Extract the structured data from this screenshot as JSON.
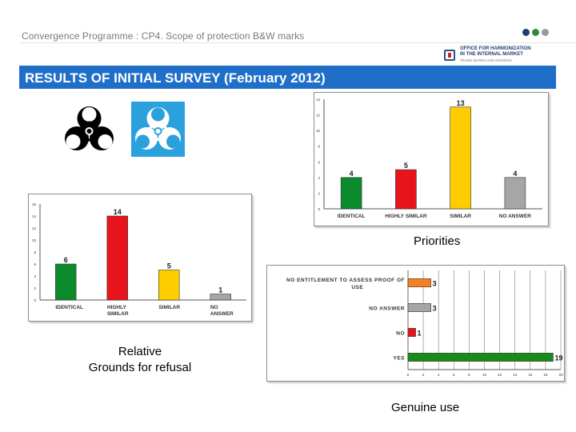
{
  "header": {
    "text": "Convergence Programme : CP4. Scope of protection B&W marks"
  },
  "logo": {
    "line1": "OFFICE FOR HARMONIZATION",
    "line2": "IN THE INTERNAL MARKET",
    "line3": "TRADE MARKS AND DESIGNS",
    "dot_colors": [
      "#1f3d73",
      "#2d8c3c",
      "#9a9a9a"
    ]
  },
  "banner": {
    "title": "RESULTS OF INITIAL SURVEY (February 2012)",
    "color": "#1f6fc9"
  },
  "icons": [
    {
      "name": "biohazard-black-icon",
      "bg": "#ffffff",
      "fg": "#000000"
    },
    {
      "name": "biohazard-blue-icon",
      "bg": "#2aa1dd",
      "fg": "#ffffff"
    }
  ],
  "captions": {
    "priorities": "Priorities",
    "relative_line1": "Relative",
    "relative_line2": "Grounds for refusal",
    "genuine": "Genuine use"
  },
  "chart_data": [
    {
      "id": "priorities",
      "type": "bar",
      "categories": [
        "IDENTICAL",
        "HIGHLY SIMILAR",
        "SIMILAR",
        "NO ANSWER"
      ],
      "values": [
        4,
        5,
        13,
        4
      ],
      "colors": [
        "#0a8a2a",
        "#e8141c",
        "#ffcc00",
        "#a6a6a6"
      ],
      "ylim": [
        0,
        14
      ],
      "yticks": [
        0,
        2,
        4,
        6,
        8,
        10,
        12,
        14
      ],
      "title": "",
      "xlabel": "",
      "ylabel": ""
    },
    {
      "id": "relative",
      "type": "bar",
      "categories": [
        "IDENTICAL",
        "HIGHLY SIMILAR",
        "SIMILAR",
        "NO ANSWER"
      ],
      "values": [
        6,
        14,
        5,
        1
      ],
      "colors": [
        "#0a8a2a",
        "#e8141c",
        "#ffcc00",
        "#a6a6a6"
      ],
      "ylim": [
        0,
        16
      ],
      "yticks": [
        0,
        2,
        4,
        6,
        8,
        10,
        12,
        14,
        16
      ],
      "title": "",
      "xlabel": "",
      "ylabel": ""
    },
    {
      "id": "genuine",
      "type": "bar",
      "orientation": "horizontal",
      "categories": [
        "NO ENTITLEMENT TO ASSESS PROOF OF USE",
        "NO ANSWER",
        "NO",
        "YES"
      ],
      "values": [
        3,
        3,
        1,
        19
      ],
      "colors": [
        "#f5821f",
        "#a6a6a6",
        "#e8141c",
        "#1a8a1a"
      ],
      "xlim": [
        0,
        20
      ],
      "xticks": [
        0,
        2,
        4,
        6,
        8,
        10,
        12,
        14,
        16,
        18,
        20
      ],
      "title": "",
      "xlabel": "",
      "ylabel": ""
    }
  ]
}
